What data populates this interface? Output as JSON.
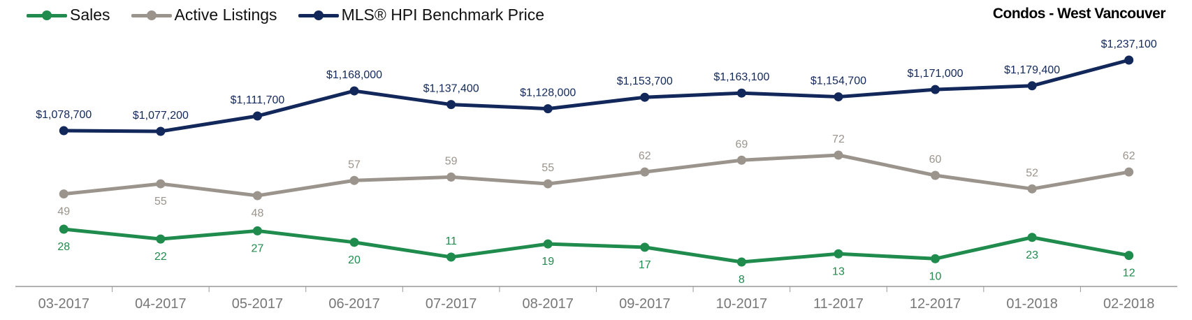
{
  "legend": {
    "sales": "Sales",
    "listings": "Active Listings",
    "hpi": "MLS® HPI Benchmark Price"
  },
  "colors": {
    "sales": "#1f8b4c",
    "listings": "#9b948c",
    "hpi": "#12275a",
    "axis": "#999999"
  },
  "chart_data": {
    "type": "line",
    "title": "Condos - West Vancouver",
    "categories": [
      "03-2017",
      "04-2017",
      "05-2017",
      "06-2017",
      "07-2017",
      "08-2017",
      "09-2017",
      "10-2017",
      "11-2017",
      "12-2017",
      "01-2018",
      "02-2018"
    ],
    "series": [
      {
        "name": "Sales",
        "key": "sales",
        "values": [
          28,
          22,
          27,
          20,
          11,
          19,
          17,
          8,
          13,
          10,
          23,
          12
        ],
        "labels": [
          "28",
          "22",
          "27",
          "20",
          "11",
          "19",
          "17",
          "8",
          "13",
          "10",
          "23",
          "12"
        ]
      },
      {
        "name": "Active Listings",
        "key": "listings",
        "values": [
          49,
          55,
          48,
          57,
          59,
          55,
          62,
          69,
          72,
          60,
          52,
          62
        ],
        "labels": [
          "49",
          "55",
          "48",
          "57",
          "59",
          "55",
          "62",
          "69",
          "72",
          "60",
          "52",
          "62"
        ]
      },
      {
        "name": "MLS® HPI Benchmark Price",
        "key": "hpi",
        "values": [
          1078700,
          1077200,
          1111700,
          1168000,
          1137400,
          1128000,
          1153700,
          1163100,
          1154700,
          1171000,
          1179400,
          1237100
        ],
        "labels": [
          "$1,078,700",
          "$1,077,200",
          "$1,111,700",
          "$1,168,000",
          "$1,137,400",
          "$1,128,000",
          "$1,153,700",
          "$1,163,100",
          "$1,154,700",
          "$1,171,000",
          "$1,179,400",
          "$1,237,100"
        ]
      }
    ],
    "grid": false,
    "legend_position": "top-left"
  }
}
